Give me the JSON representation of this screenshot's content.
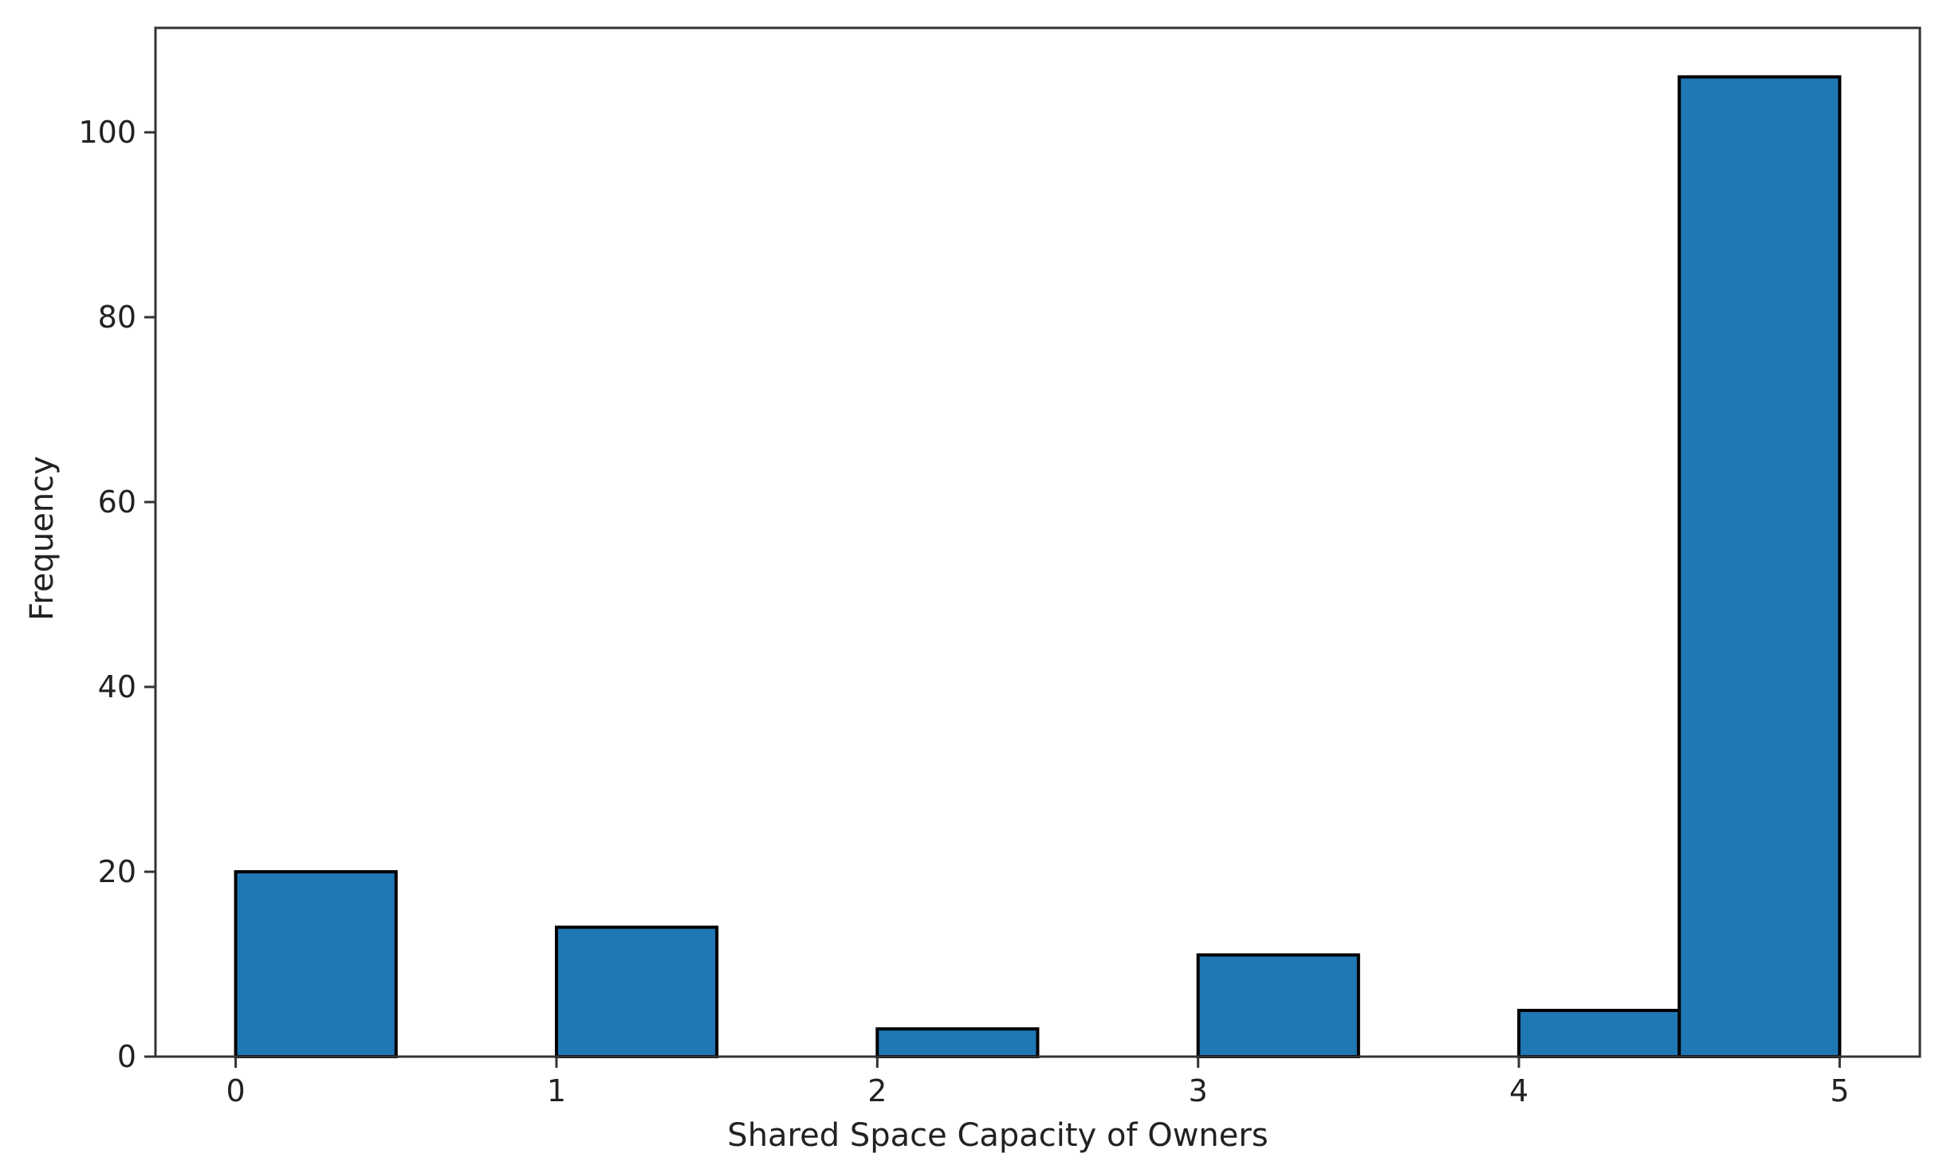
{
  "chart_data": {
    "type": "bar",
    "bins": [
      {
        "start": 0.0,
        "end": 0.5,
        "value": 20
      },
      {
        "start": 1.0,
        "end": 1.5,
        "value": 14
      },
      {
        "start": 2.0,
        "end": 2.5,
        "value": 3
      },
      {
        "start": 3.0,
        "end": 3.5,
        "value": 11
      },
      {
        "start": 4.0,
        "end": 4.5,
        "value": 5
      },
      {
        "start": 4.5,
        "end": 5.0,
        "value": 106
      }
    ],
    "title": "",
    "xlabel": "Shared Space Capacity of Owners",
    "ylabel": "Frequency",
    "xlim": [
      -0.25,
      5.25
    ],
    "ylim": [
      0,
      111.3
    ],
    "xticks": [
      0,
      1,
      2,
      3,
      4,
      5
    ],
    "yticks": [
      0,
      20,
      40,
      60,
      80,
      100
    ],
    "grid": false,
    "bar_color": "#1f77b4",
    "edge_color": "#000000"
  }
}
